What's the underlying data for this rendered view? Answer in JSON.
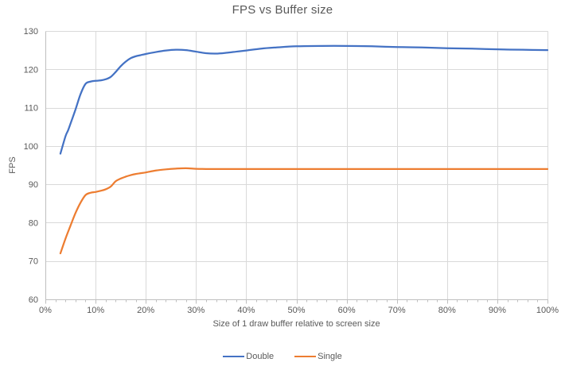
{
  "chart_data": {
    "type": "line",
    "title": "FPS vs Buffer size",
    "xlabel": "Size of 1 draw buffer relative to screen size",
    "ylabel": "FPS",
    "xlim": [
      0,
      100
    ],
    "ylim": [
      60,
      130
    ],
    "grid": true,
    "legend_position": "bottom",
    "x_tick_values": [
      0,
      10,
      20,
      30,
      40,
      50,
      60,
      70,
      80,
      90,
      100
    ],
    "x_tick_labels": [
      "0%",
      "10%",
      "20%",
      "30%",
      "40%",
      "50%",
      "60%",
      "70%",
      "80%",
      "90%",
      "100%"
    ],
    "x_minor_tick_step": 2,
    "y_tick_values": [
      60,
      70,
      80,
      90,
      100,
      110,
      120,
      130
    ],
    "colors": {
      "grid": "#D9D9D9",
      "axis": "#BFBFBF",
      "tick": "#BFBFBF",
      "text": "#595959",
      "title": "#595959",
      "background": "#FFFFFF"
    },
    "series": [
      {
        "name": "Double",
        "color": "#4472C4",
        "x": [
          3,
          4,
          4.5,
          5,
          6,
          7,
          8,
          9,
          10,
          11,
          12,
          13,
          14,
          15,
          16,
          17,
          18,
          19,
          20,
          22,
          24,
          26,
          28,
          30,
          32,
          34,
          36,
          38,
          40,
          43,
          46,
          50,
          55,
          60,
          65,
          70,
          75,
          80,
          85,
          90,
          95,
          100
        ],
        "y": [
          98,
          102.5,
          104,
          105.8,
          109.5,
          113.5,
          116.2,
          116.8,
          117,
          117.1,
          117.4,
          118,
          119.3,
          120.8,
          122,
          122.9,
          123.4,
          123.7,
          124,
          124.5,
          124.9,
          125.1,
          125,
          124.6,
          124.2,
          124.1,
          124.3,
          124.6,
          124.9,
          125.4,
          125.7,
          126,
          126.1,
          126.1,
          126,
          125.8,
          125.7,
          125.5,
          125.4,
          125.2,
          125.1,
          125
        ]
      },
      {
        "name": "Single",
        "color": "#ED7D31",
        "x": [
          3,
          4,
          5,
          6,
          7,
          8,
          9,
          10,
          11,
          12,
          13,
          14,
          15,
          16,
          17,
          18,
          19,
          20,
          22,
          24,
          26,
          28,
          30,
          32,
          34,
          36,
          38,
          40,
          45,
          50,
          55,
          60,
          65,
          70,
          75,
          80,
          85,
          90,
          95,
          100
        ],
        "y": [
          72,
          75.8,
          79.2,
          82.5,
          85.2,
          87.2,
          87.8,
          88,
          88.3,
          88.7,
          89.4,
          90.8,
          91.5,
          92,
          92.4,
          92.7,
          92.9,
          93.1,
          93.6,
          93.9,
          94.1,
          94.2,
          94.05,
          94,
          94,
          94,
          94,
          94,
          94,
          94,
          94,
          94,
          94,
          94,
          94,
          94,
          94,
          94,
          94,
          94
        ]
      }
    ]
  }
}
